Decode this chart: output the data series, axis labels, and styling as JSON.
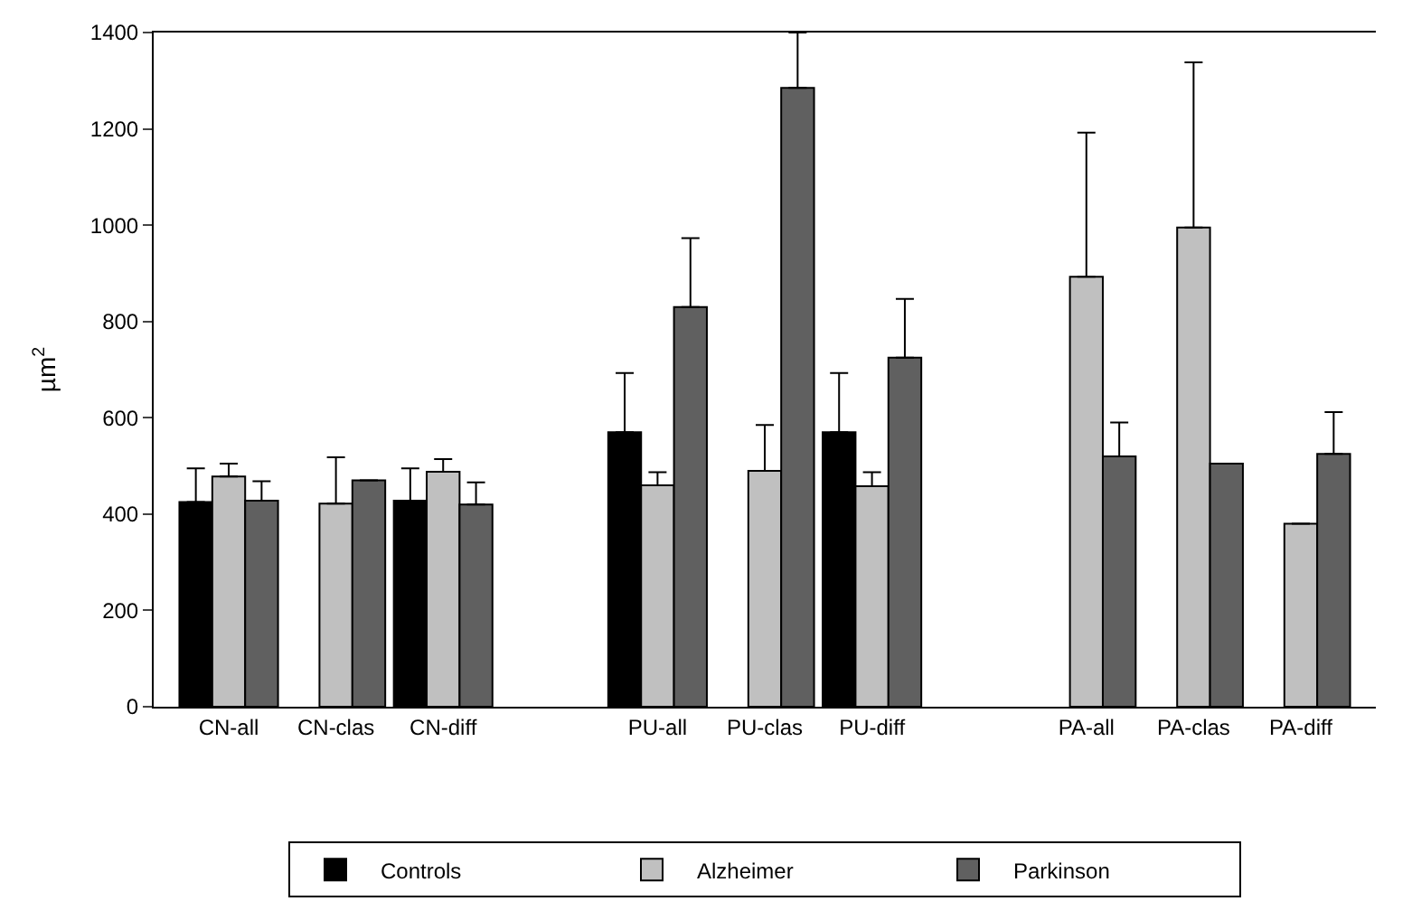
{
  "chart_data": {
    "type": "bar",
    "ylabel": "µm$^{2}$",
    "categories": [
      "CN-all",
      "CN-clas",
      "CN-diff",
      null,
      "PU-all",
      "PU-clas",
      "PU-diff",
      null,
      "PA-all",
      "PA-clas",
      "PA-diff"
    ],
    "series": [
      {
        "name": "Controls",
        "color": "#000000",
        "values": [
          425,
          null,
          428,
          null,
          570,
          null,
          570,
          null,
          null,
          null,
          null
        ],
        "errors": [
          [
            425,
            495
          ],
          null,
          [
            428,
            495
          ],
          null,
          [
            570,
            693
          ],
          null,
          [
            570,
            693
          ],
          null,
          null,
          null,
          null
        ]
      },
      {
        "name": "Alzheimer",
        "color": "#c0c0c0",
        "values": [
          478,
          422,
          488,
          null,
          460,
          490,
          458,
          null,
          893,
          995,
          380
        ],
        "errors": [
          [
            478,
            505
          ],
          [
            422,
            518
          ],
          [
            488,
            514
          ],
          null,
          [
            460,
            487
          ],
          [
            490,
            585
          ],
          [
            458,
            487
          ],
          null,
          [
            893,
            1192
          ],
          [
            995,
            1338
          ],
          null
        ]
      },
      {
        "name": "Parkinson",
        "color": "#606060",
        "values": [
          428,
          470,
          420,
          null,
          830,
          1285,
          725,
          null,
          520,
          505,
          525
        ],
        "errors": [
          [
            428,
            468
          ],
          null,
          [
            420,
            466
          ],
          null,
          [
            830,
            973
          ],
          [
            1285,
            1400
          ],
          [
            725,
            847
          ],
          null,
          [
            520,
            590
          ],
          null,
          [
            525,
            612
          ]
        ]
      }
    ],
    "ylim": [
      0,
      1400
    ],
    "yticks": [
      0,
      200,
      400,
      600,
      800,
      1000,
      1200,
      1400
    ],
    "legend": "bottom"
  }
}
